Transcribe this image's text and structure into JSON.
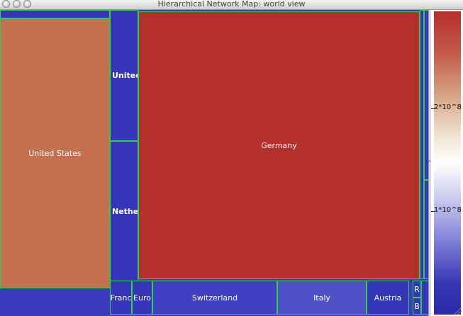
{
  "window": {
    "title": "Hierarchical Network Map: world view"
  },
  "treemap": {
    "cells": {
      "united_states": "United States",
      "germany": "Germany",
      "united": "United",
      "nether": "Nether",
      "franc": "Franc",
      "euro": "Euro",
      "switzerland": "Switzerland",
      "italy": "Italy",
      "austria": "Austria",
      "r": "R",
      "b": "B"
    },
    "colors": {
      "united_states": "#c5704e",
      "germany": "#b52f2c",
      "blue_dark": "#3535b9",
      "blue_mid": "#3f3fc2",
      "italy": "#5050c9",
      "border": "#2fcf4a"
    }
  },
  "legend": {
    "ticks": [
      "2*10^8",
      "1*10^8"
    ]
  }
}
